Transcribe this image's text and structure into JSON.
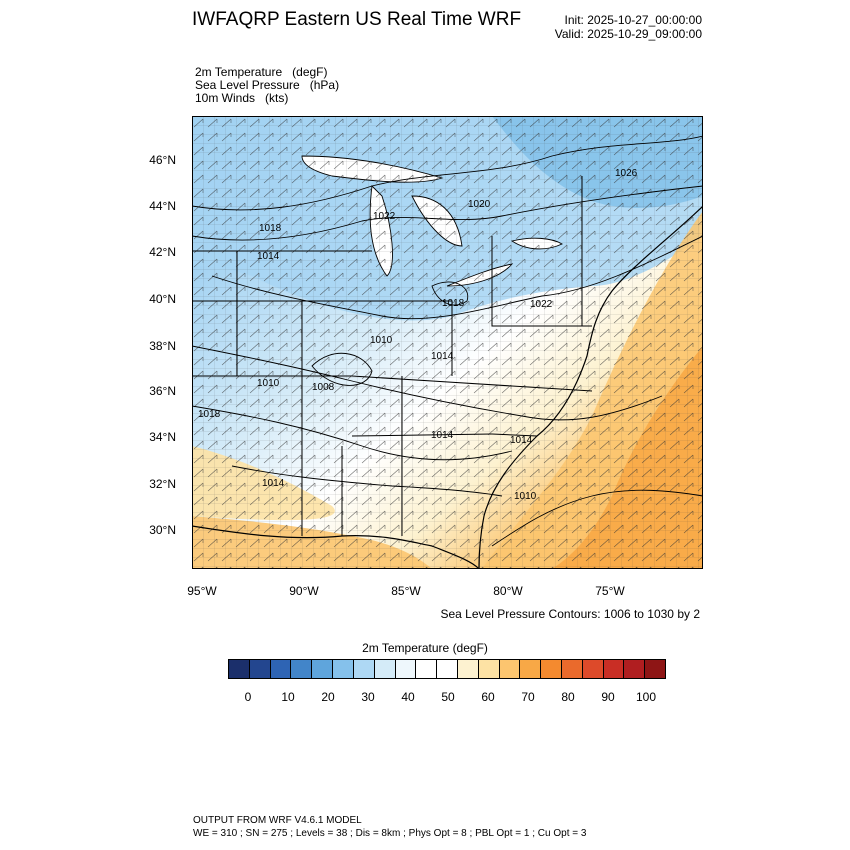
{
  "header": {
    "title": "IWFAQRP Eastern US Real Time WRF",
    "init": "Init: 2025-10-27_00:00:00",
    "valid": "Valid: 2025-10-29_09:00:00"
  },
  "fields": [
    "2m Temperature   (degF)",
    "Sea Level Pressure   (hPa)",
    "10m Winds   (kts)"
  ],
  "map": {
    "lat_ticks": [
      "46°N",
      "44°N",
      "42°N",
      "40°N",
      "38°N",
      "36°N",
      "34°N",
      "32°N",
      "30°N"
    ],
    "lon_ticks": [
      "95°W",
      "90°W",
      "85°W",
      "80°W",
      "75°W"
    ],
    "slp_labels": [
      "1026",
      "1022",
      "1020",
      "1018",
      "1014",
      "1018",
      "1022",
      "1010",
      "1014",
      "1010",
      "1008",
      "1018",
      "1014",
      "1014",
      "1014",
      "1010"
    ],
    "contour_note": "Sea Level Pressure Contours: 1006 to 1030 by 2"
  },
  "colorbar": {
    "title": "2m Temperature  (degF)",
    "labels": [
      "0",
      "10",
      "20",
      "30",
      "40",
      "50",
      "60",
      "70",
      "80",
      "90",
      "100"
    ],
    "colors": [
      "#1b2f6b",
      "#23468f",
      "#2e64b4",
      "#4285c9",
      "#5fa5dc",
      "#85c1eb",
      "#aed8f4",
      "#d4ebf8",
      "#eef7fc",
      "#ffffff",
      "#ffffff",
      "#fdf2d0",
      "#fde2a4",
      "#fcc56f",
      "#f8a846",
      "#f48a2f",
      "#ea6a2c",
      "#dd4a2a",
      "#c92e25",
      "#b01e20",
      "#8e1515"
    ]
  },
  "footer": {
    "line1": "OUTPUT FROM WRF V4.6.1 MODEL",
    "line2": "WE = 310 ; SN = 275 ; Levels = 38 ; Dis = 8km ; Phys Opt = 8 ; PBL Opt = 1 ; Cu Opt = 3"
  }
}
